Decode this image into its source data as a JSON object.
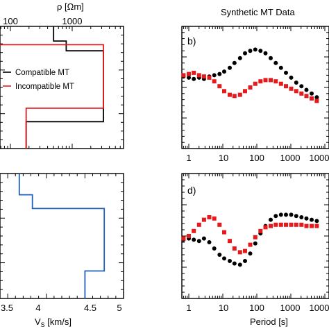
{
  "header": {
    "rho_axis_label": "ρ [Ωm]",
    "synthetic_title": "Synthetic MT Data"
  },
  "colors": {
    "compatible": "#000000",
    "incompatible": "#e41a1c",
    "vs": "#1f5fbf"
  },
  "chart_data": [
    {
      "id": "resistivity-profile",
      "type": "line",
      "xlabel": "ρ [Ωm]",
      "x_scale": "log",
      "x_ticks": [
        "100",
        "1000"
      ],
      "legend": [
        "Compatible MT",
        "Incompatible MT"
      ],
      "legend_placement": "middle-right",
      "series": [
        {
          "name": "Compatible MT",
          "color": "#000000",
          "x": [
            500,
            500,
            800,
            800,
            3200,
            3200,
            180,
            180
          ],
          "y": [
            0.0,
            0.12,
            0.12,
            0.2,
            0.2,
            0.78,
            0.78,
            1.0
          ]
        },
        {
          "name": "Incompatible MT",
          "color": "#e41a1c",
          "x": [
            30,
            30,
            3200,
            3200,
            180,
            180
          ],
          "y": [
            0.08,
            0.15,
            0.15,
            0.67,
            0.67,
            1.0
          ]
        }
      ]
    },
    {
      "id": "apparent-resistivity",
      "type": "scatter",
      "panel_label": "b)",
      "x_scale": "log",
      "x_ticks": [
        "1",
        "10",
        "100",
        "1000",
        "1000"
      ],
      "series": [
        {
          "name": "Compatible MT",
          "color": "#000000",
          "x": [
            0.5,
            0.7,
            1,
            1.4,
            2,
            2.8,
            4,
            5.6,
            8,
            11,
            16,
            22,
            32,
            45,
            64,
            90,
            128,
            180,
            256,
            360,
            512,
            720,
            1024,
            1440,
            2048,
            2880,
            4096,
            5800
          ],
          "y": [
            0.42,
            0.41,
            0.42,
            0.43,
            0.42,
            0.43,
            0.41,
            0.4,
            0.39,
            0.37,
            0.34,
            0.3,
            0.26,
            0.22,
            0.2,
            0.19,
            0.2,
            0.22,
            0.26,
            0.3,
            0.34,
            0.38,
            0.42,
            0.46,
            0.49,
            0.52,
            0.55,
            0.58
          ]
        },
        {
          "name": "Incompatible MT",
          "color": "#e41a1c",
          "x": [
            0.5,
            0.7,
            1,
            1.4,
            2,
            2.8,
            4,
            5.6,
            8,
            11,
            16,
            22,
            32,
            45,
            64,
            90,
            128,
            180,
            256,
            360,
            512,
            720,
            1024,
            1440,
            2048,
            2880,
            4096,
            5800
          ],
          "y": [
            0.42,
            0.4,
            0.39,
            0.38,
            0.4,
            0.41,
            0.42,
            0.45,
            0.49,
            0.53,
            0.56,
            0.57,
            0.56,
            0.53,
            0.5,
            0.47,
            0.45,
            0.44,
            0.44,
            0.45,
            0.47,
            0.49,
            0.51,
            0.53,
            0.55,
            0.57,
            0.59,
            0.61
          ]
        }
      ]
    },
    {
      "id": "vs-profile",
      "type": "line",
      "xlabel_main": "V",
      "xlabel_sub": "S",
      "xlabel_units": " [km/s]",
      "x_ticks": [
        "3.5",
        "4",
        "4.5",
        "5"
      ],
      "xlim": [
        3.4,
        5.0
      ],
      "series": [
        {
          "name": "Vs",
          "color": "#1f5fbf",
          "x": [
            3.65,
            3.65,
            3.82,
            3.82,
            4.75,
            4.75,
            4.5,
            4.5
          ],
          "y": [
            0.0,
            0.17,
            0.17,
            0.28,
            0.28,
            0.78,
            0.78,
            1.0
          ]
        }
      ]
    },
    {
      "id": "phase",
      "type": "scatter",
      "panel_label": "d)",
      "xlabel": "Period [s]",
      "x_scale": "log",
      "x_ticks": [
        "1",
        "10",
        "100",
        "1000",
        "1000"
      ],
      "series": [
        {
          "name": "Compatible MT",
          "color": "#000000",
          "x": [
            0.5,
            0.7,
            1,
            1.4,
            2,
            2.8,
            4,
            5.6,
            8,
            11,
            16,
            22,
            32,
            45,
            64,
            90,
            128,
            180,
            256,
            360,
            512,
            720,
            1024,
            1440,
            2048,
            2880,
            4096,
            5800
          ],
          "y": [
            0.52,
            0.53,
            0.52,
            0.53,
            0.54,
            0.52,
            0.55,
            0.6,
            0.65,
            0.68,
            0.7,
            0.72,
            0.73,
            0.7,
            0.64,
            0.56,
            0.48,
            0.42,
            0.37,
            0.34,
            0.33,
            0.33,
            0.33,
            0.34,
            0.35,
            0.36,
            0.37,
            0.38
          ]
        },
        {
          "name": "Incompatible MT",
          "color": "#e41a1c",
          "x": [
            0.5,
            0.7,
            1,
            1.4,
            2,
            2.8,
            4,
            5.6,
            8,
            11,
            16,
            22,
            32,
            45,
            64,
            90,
            128,
            180,
            256,
            360,
            512,
            720,
            1024,
            1440,
            2048,
            2880,
            4096,
            5800
          ],
          "y": [
            0.53,
            0.52,
            0.5,
            0.46,
            0.41,
            0.37,
            0.35,
            0.36,
            0.41,
            0.47,
            0.54,
            0.6,
            0.63,
            0.62,
            0.57,
            0.51,
            0.46,
            0.43,
            0.42,
            0.41,
            0.41,
            0.41,
            0.41,
            0.41,
            0.41,
            0.42,
            0.42,
            0.42
          ]
        }
      ]
    }
  ]
}
